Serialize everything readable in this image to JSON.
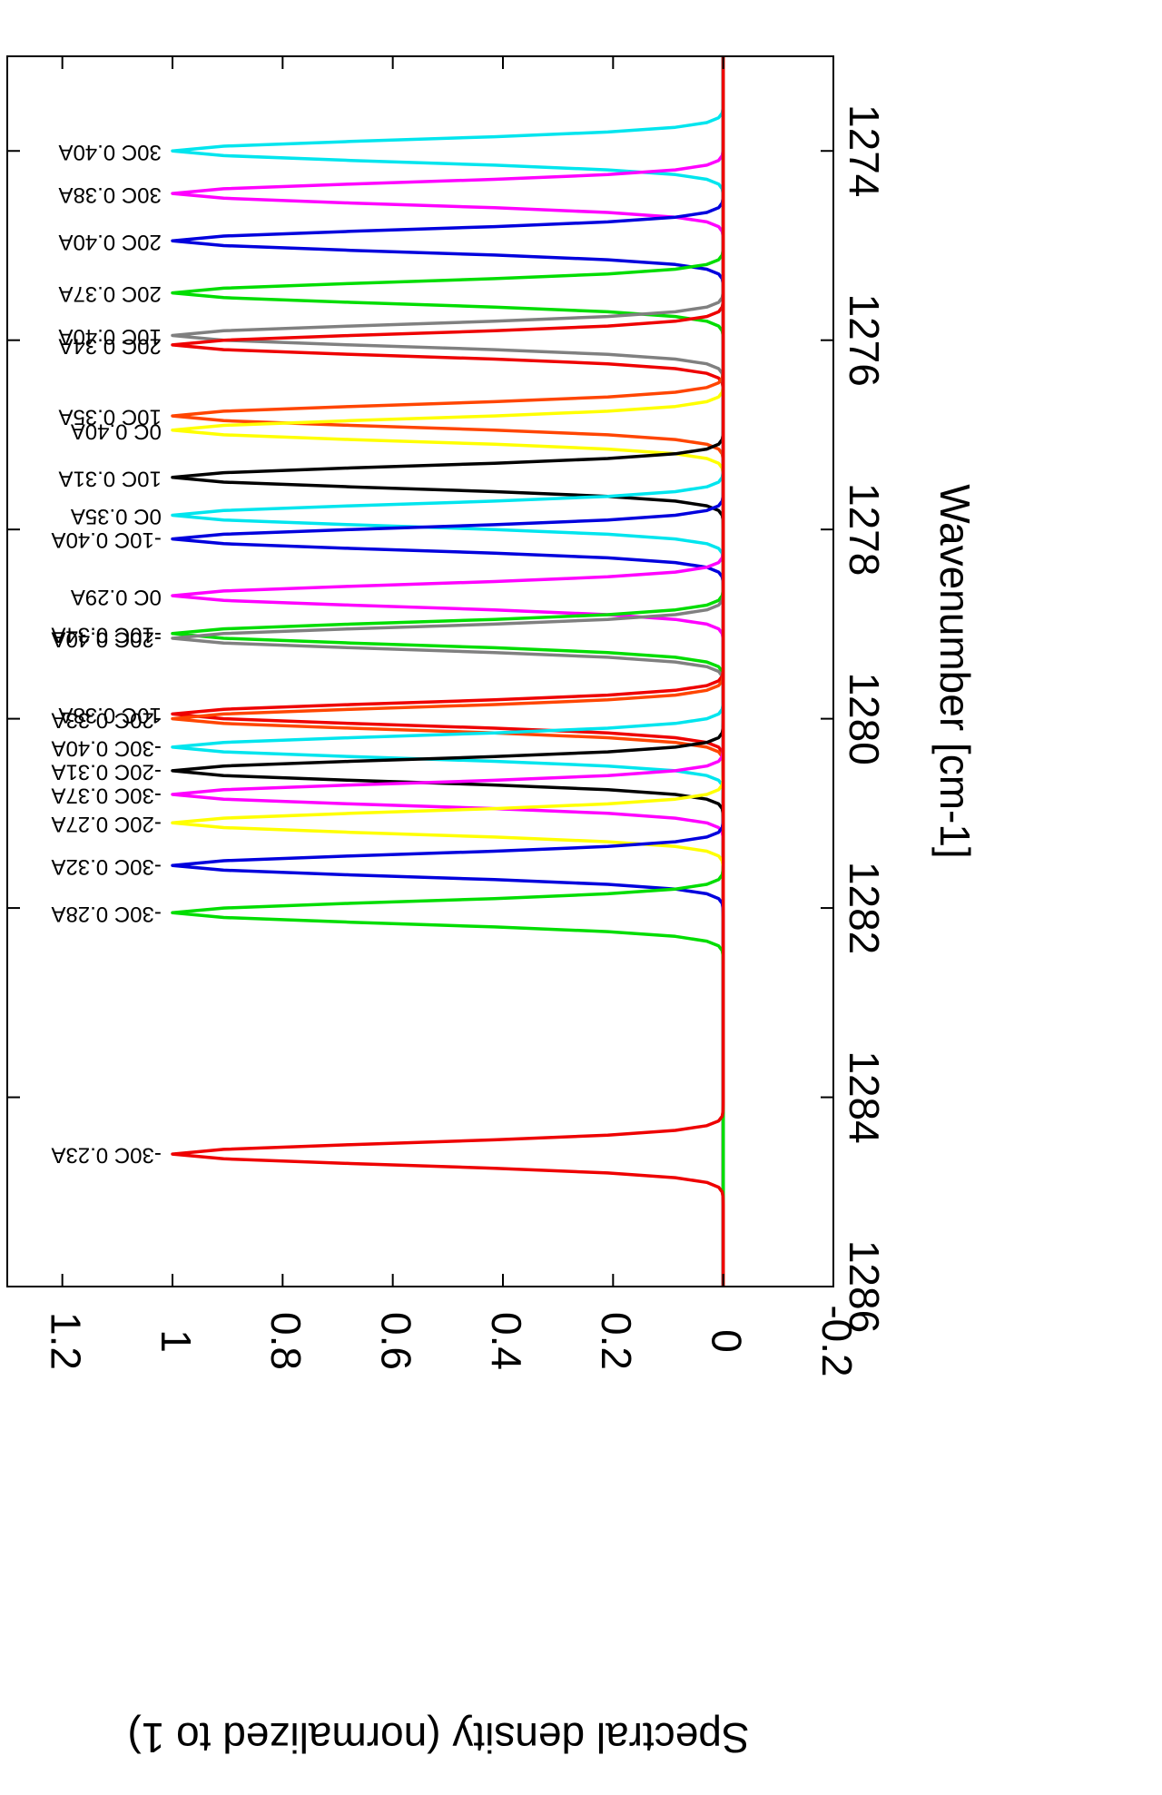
{
  "chart_data": {
    "type": "line",
    "orientation": "rotated-90",
    "xlabel": "Wavenumber [cm-1]",
    "ylabel": "Spectral density (normalized to 1)",
    "xlim": [
      1273,
      1286
    ],
    "ylim": [
      -0.2,
      1.3
    ],
    "xticks": [
      "1274",
      "1276",
      "1278",
      "1280",
      "1282",
      "1284",
      "1286"
    ],
    "yticks": [
      "-0.2",
      "0",
      "0.2",
      "0.4",
      "0.6",
      "0.8",
      "1",
      "1.2"
    ],
    "grid": false,
    "peak_width": 0.16,
    "series": [
      {
        "name": "30C 0.40A",
        "center": 1274.0,
        "color": "#00e5ee"
      },
      {
        "name": "30C 0.38A",
        "center": 1274.45,
        "color": "#ff00ff"
      },
      {
        "name": "20C 0.40A",
        "center": 1274.95,
        "color": "#0000dd"
      },
      {
        "name": "20C 0.37A",
        "center": 1275.5,
        "color": "#00dd00"
      },
      {
        "name": "10C 0.40A",
        "center": 1275.95,
        "color": "#808080"
      },
      {
        "name": "20C 0.34A",
        "center": 1276.05,
        "color": "#ee0000"
      },
      {
        "name": "10C 0.35A",
        "center": 1276.8,
        "color": "#ff4500"
      },
      {
        "name": "0C 0.40A",
        "center": 1276.95,
        "color": "#ffff00"
      },
      {
        "name": "10C 0.31A",
        "center": 1277.45,
        "color": "#000000"
      },
      {
        "name": "0C 0.35A",
        "center": 1277.85,
        "color": "#00e5ee"
      },
      {
        "name": "-10C 0.40A",
        "center": 1278.1,
        "color": "#0000dd"
      },
      {
        "name": "0C 0.29A",
        "center": 1278.7,
        "color": "#ff00ff"
      },
      {
        "name": "-10C 0.34A",
        "center": 1279.1,
        "color": "#00dd00"
      },
      {
        "name": "-20C 0.40A",
        "center": 1279.15,
        "color": "#808080"
      },
      {
        "name": "10C 0.38A",
        "center": 1279.95,
        "color": "#ee0000"
      },
      {
        "name": "-20C 0.33A",
        "center": 1280.0,
        "color": "#ff4500"
      },
      {
        "name": "-30C 0.40A",
        "center": 1280.3,
        "color": "#00e5ee"
      },
      {
        "name": "-20C 0.31A",
        "center": 1280.55,
        "color": "#000000"
      },
      {
        "name": "-30C 0.37A",
        "center": 1280.8,
        "color": "#ff00ff"
      },
      {
        "name": "-20C 0.27A",
        "center": 1281.1,
        "color": "#ffff00"
      },
      {
        "name": "-30C 0.32A",
        "center": 1281.55,
        "color": "#0000dd"
      },
      {
        "name": "-30C 0.28A",
        "center": 1282.05,
        "color": "#00dd00"
      },
      {
        "name": "-30C 0.23A",
        "center": 1284.6,
        "color": "#ee0000"
      }
    ]
  }
}
